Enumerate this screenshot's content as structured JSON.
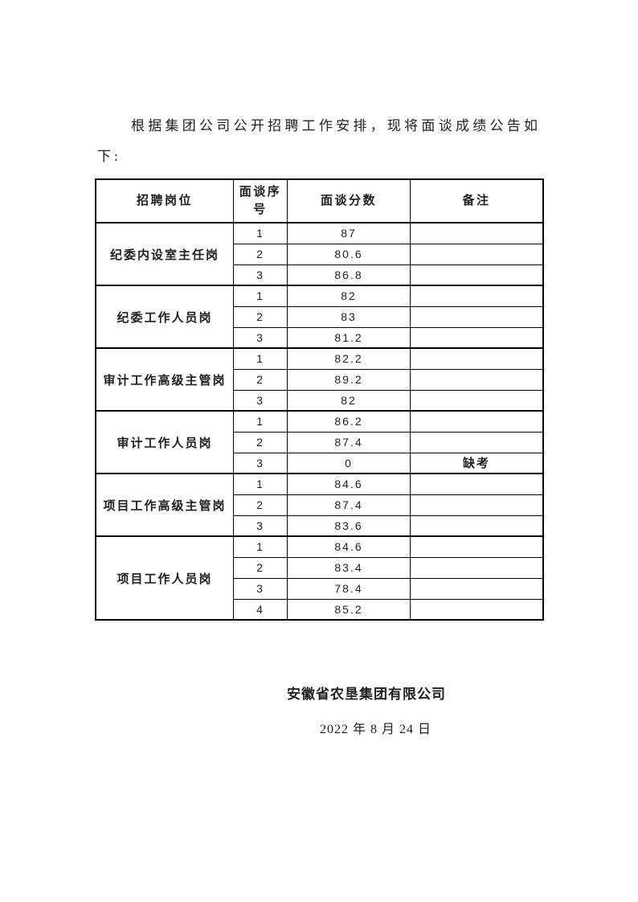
{
  "intro": {
    "text": "根据集团公司公开招聘工作安排，现将面谈成绩公告如下:"
  },
  "table": {
    "headers": {
      "position": "招聘岗位",
      "seq": "面谈序号",
      "score": "面谈分数",
      "remark": "备注"
    },
    "groups": [
      {
        "position": "纪委内设室主任岗",
        "rows": [
          {
            "seq": "1",
            "score": "87",
            "remark": ""
          },
          {
            "seq": "2",
            "score": "80.6",
            "remark": ""
          },
          {
            "seq": "3",
            "score": "86.8",
            "remark": ""
          }
        ]
      },
      {
        "position": "纪委工作人员岗",
        "rows": [
          {
            "seq": "1",
            "score": "82",
            "remark": ""
          },
          {
            "seq": "2",
            "score": "83",
            "remark": ""
          },
          {
            "seq": "3",
            "score": "81.2",
            "remark": ""
          }
        ]
      },
      {
        "position": "审计工作高级主管岗",
        "rows": [
          {
            "seq": "1",
            "score": "82.2",
            "remark": ""
          },
          {
            "seq": "2",
            "score": "89.2",
            "remark": ""
          },
          {
            "seq": "3",
            "score": "82",
            "remark": ""
          }
        ]
      },
      {
        "position": "审计工作人员岗",
        "rows": [
          {
            "seq": "1",
            "score": "86.2",
            "remark": ""
          },
          {
            "seq": "2",
            "score": "87.4",
            "remark": ""
          },
          {
            "seq": "3",
            "score": "0",
            "remark": "缺考"
          }
        ]
      },
      {
        "position": "项目工作高级主管岗",
        "rows": [
          {
            "seq": "1",
            "score": "84.6",
            "remark": ""
          },
          {
            "seq": "2",
            "score": "87.4",
            "remark": ""
          },
          {
            "seq": "3",
            "score": "83.6",
            "remark": ""
          }
        ]
      },
      {
        "position": "项目工作人员岗",
        "rows": [
          {
            "seq": "1",
            "score": "84.6",
            "remark": ""
          },
          {
            "seq": "2",
            "score": "83.4",
            "remark": ""
          },
          {
            "seq": "3",
            "score": "78.4",
            "remark": ""
          },
          {
            "seq": "4",
            "score": "85.2",
            "remark": ""
          }
        ]
      }
    ]
  },
  "signature": {
    "company": "安徽省农垦集团有限公司",
    "date": "2022 年 8 月 24 日"
  },
  "colors": {
    "text": "#1f1f1f",
    "border": "#000000",
    "background": "#ffffff"
  }
}
